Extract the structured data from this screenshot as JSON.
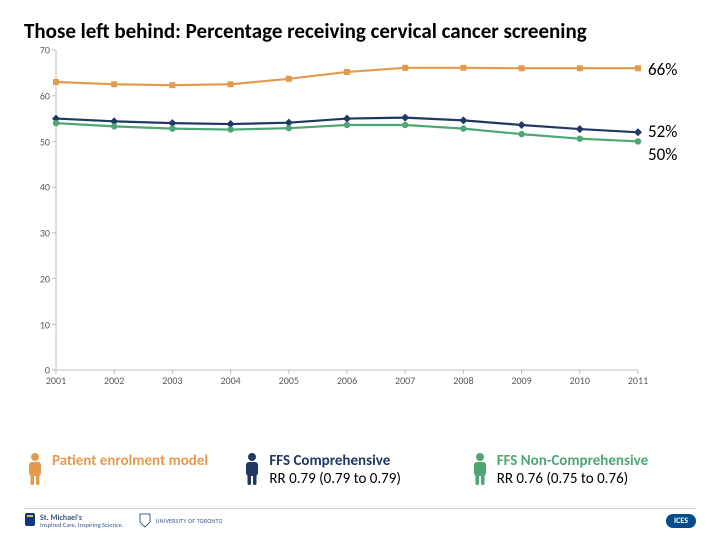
{
  "title": {
    "prefix": "Those left behind: Percentage receiving ",
    "bold": "cervical cancer screening"
  },
  "chart": {
    "type": "line",
    "ylim": [
      0,
      70
    ],
    "ytick_step": 10,
    "yticks": [
      0,
      10,
      20,
      30,
      40,
      50,
      60,
      70
    ],
    "x_categories": [
      "2001",
      "2002",
      "2003",
      "2004",
      "2005",
      "2006",
      "2007",
      "2008",
      "2009",
      "2010",
      "2011"
    ],
    "grid_color": "#e6e6e6",
    "border_color": "#bfbfbf",
    "background": "#ffffff",
    "series": [
      {
        "name": "Patient enrolment model",
        "color": "#e49a4d",
        "marker": "square",
        "values": [
          63,
          62.5,
          62.3,
          62.5,
          63.7,
          65.2,
          66.1,
          66.1,
          66.0,
          66.0,
          66
        ],
        "end_label": "66%"
      },
      {
        "name": "FFS Comprehensive",
        "color": "#1f3864",
        "marker": "diamond",
        "values": [
          55,
          54.4,
          54.0,
          53.8,
          54.1,
          55.0,
          55.2,
          54.6,
          53.6,
          52.7,
          52
        ],
        "end_label": "52%",
        "rr": "RR 0.79 (0.79 to 0.79)"
      },
      {
        "name": "FFS Non-Comprehensive",
        "color": "#4ea674",
        "marker": "circle",
        "values": [
          54,
          53.3,
          52.8,
          52.6,
          52.9,
          53.6,
          53.6,
          52.8,
          51.6,
          50.6,
          50
        ],
        "end_label": "50%",
        "rr": "RR 0.76 (0.75 to 0.76)"
      }
    ]
  },
  "legend": {
    "items": [
      {
        "label": "Patient enrolment model",
        "color": "#e49a4d",
        "sub": ""
      },
      {
        "label": "FFS Comprehensive",
        "color": "#1f3864",
        "sub": "RR 0.79 (0.79 to 0.79)"
      },
      {
        "label": "FFS Non-Comprehensive",
        "color": "#4ea674",
        "sub": "RR 0.76 (0.75 to 0.76)"
      }
    ]
  },
  "footer": {
    "org1": "St. Michael's",
    "org1_tag": "Inspired Care. Inspiring Science.",
    "org2": "UNIVERSITY OF TORONTO",
    "badge": "ICES"
  }
}
